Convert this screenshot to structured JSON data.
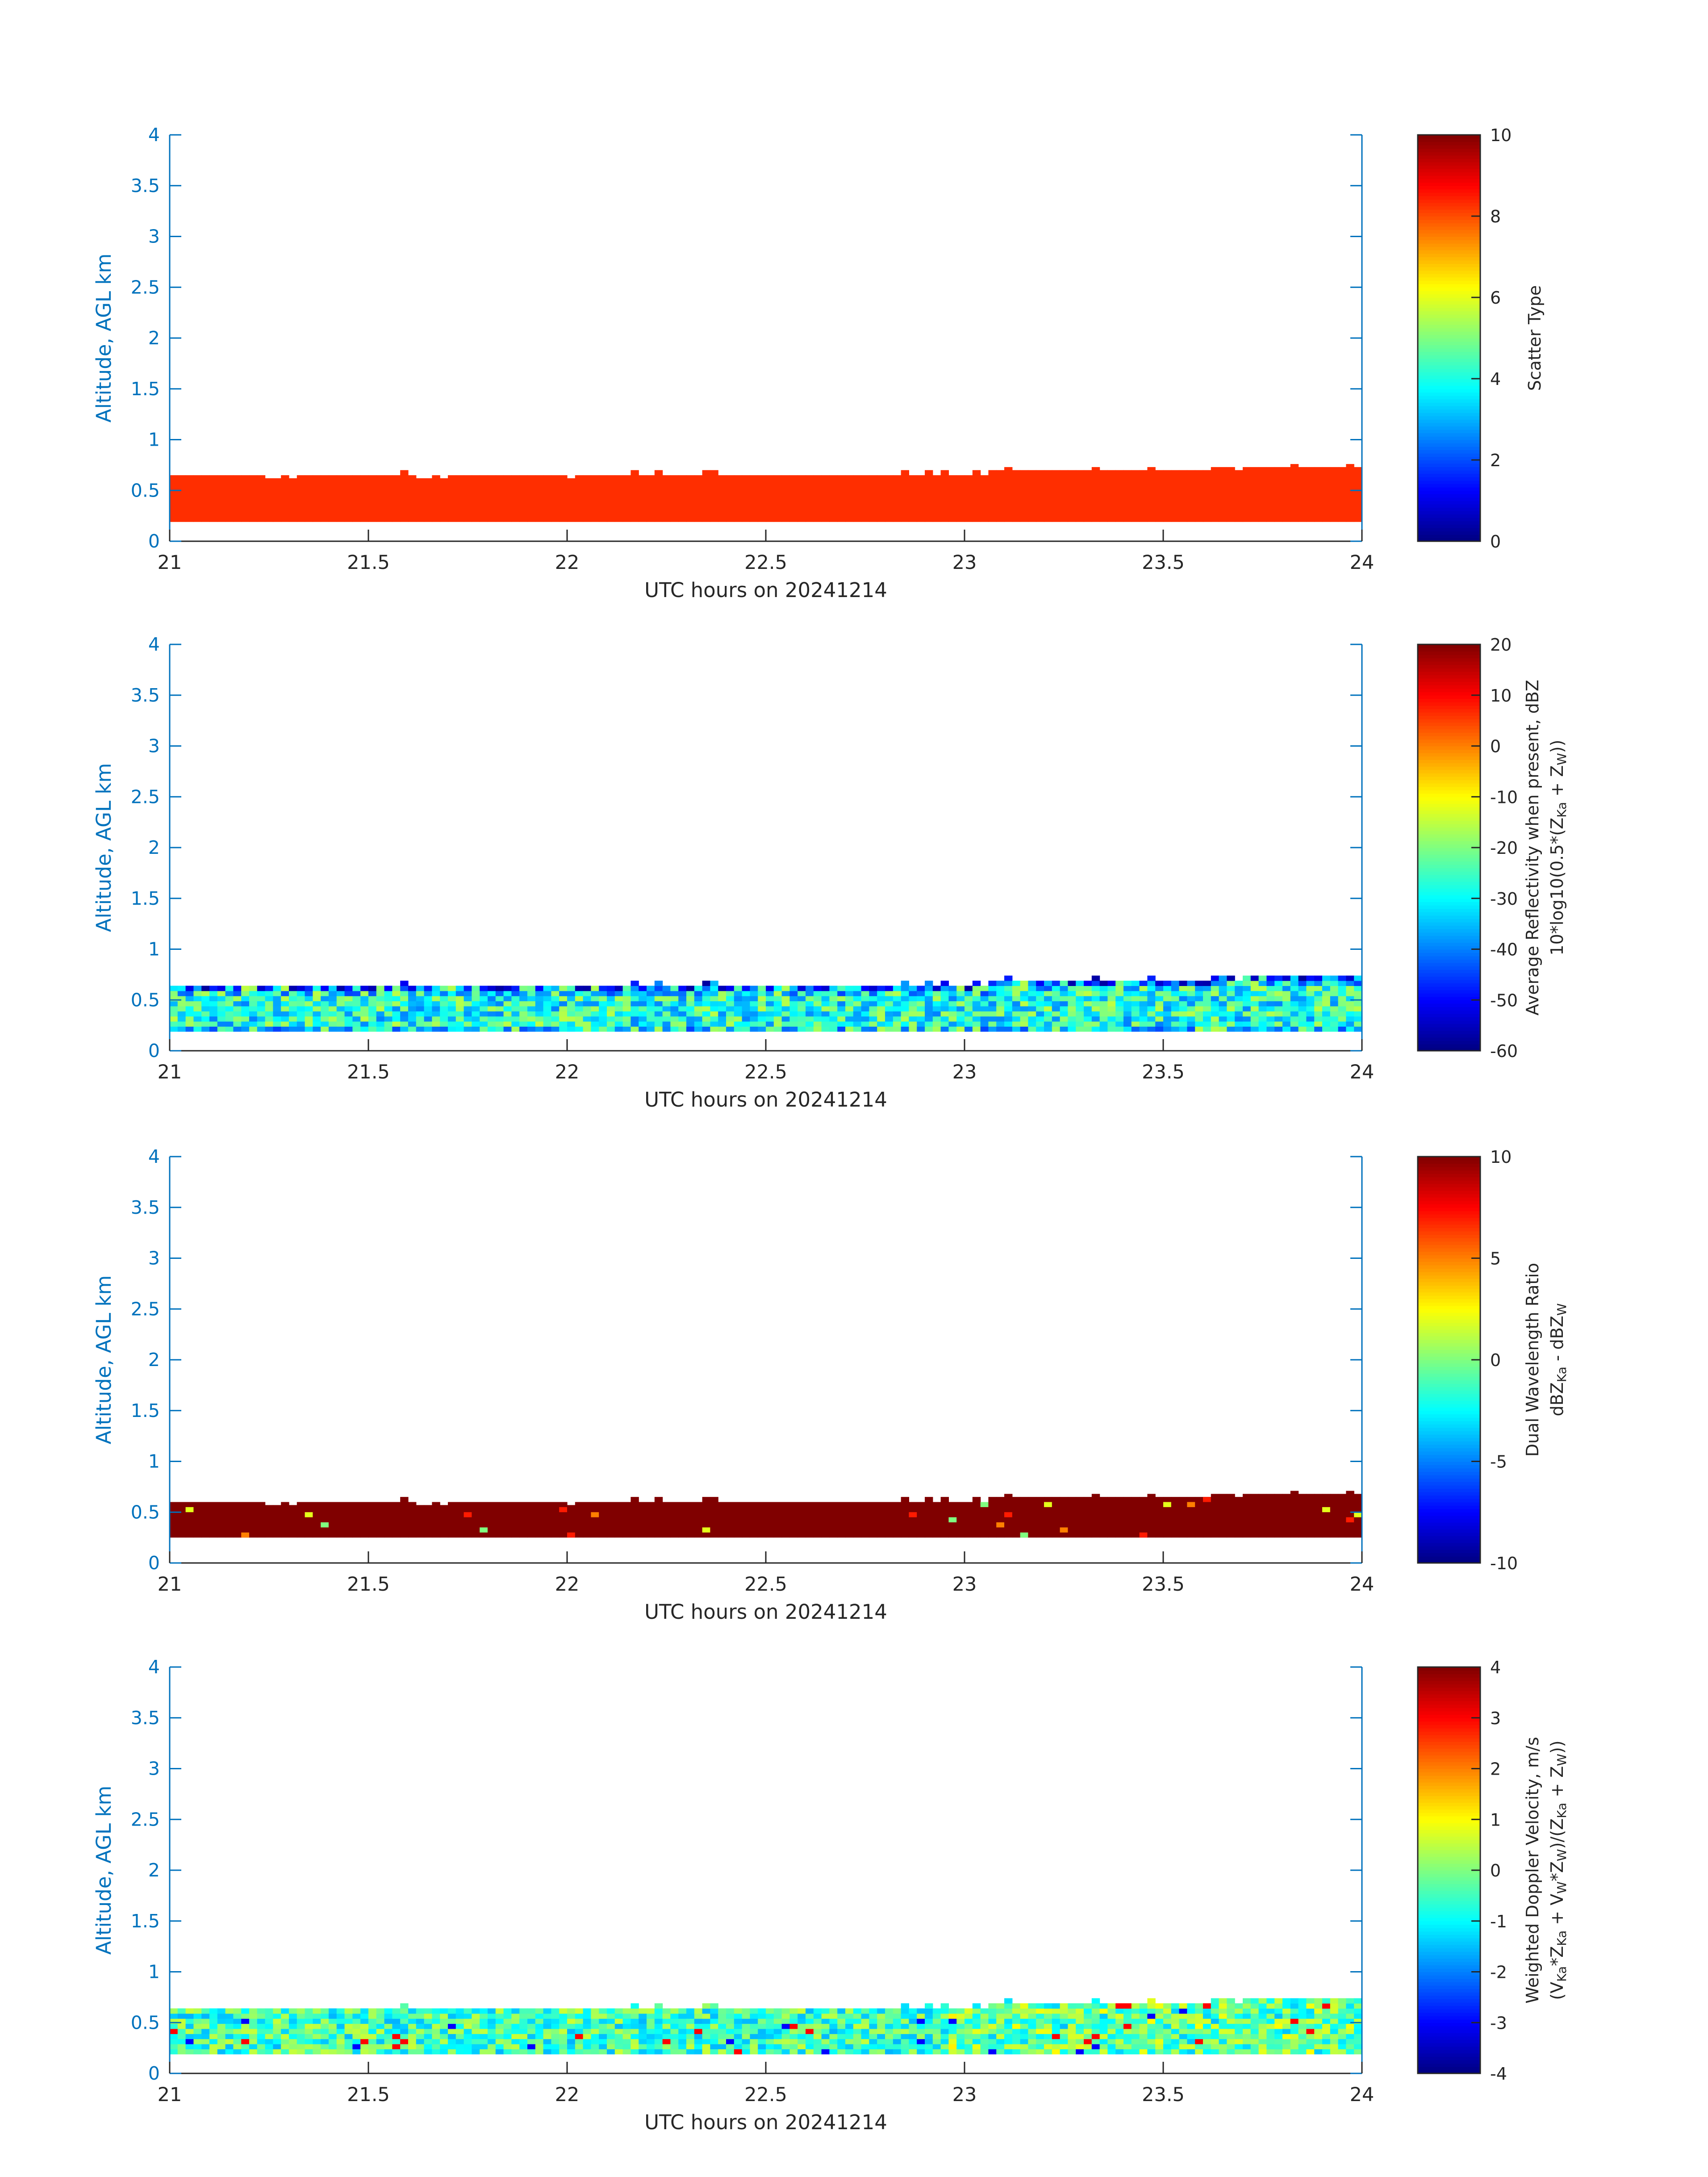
{
  "figure": {
    "colors": {
      "axis": "#0072BD",
      "text": "#262626",
      "cbar_frame": "#262626"
    }
  },
  "chart_data": [
    {
      "type": "heatmap",
      "panel_id": "scatter-type",
      "xlabel": "UTC hours on 20241214",
      "ylabel": "Altitude, AGL km",
      "xlim": [
        21,
        24
      ],
      "ylim": [
        0,
        4
      ],
      "xticks": [
        "21",
        "21.5",
        "22",
        "22.5",
        "23",
        "23.5",
        "24"
      ],
      "yticks": [
        "0",
        "0.5",
        "1",
        "1.5",
        "2",
        "2.5",
        "3",
        "3.5",
        "4"
      ],
      "colorbar": {
        "label_lines": [
          "Scatter Type"
        ],
        "ticks": [
          "0",
          "2",
          "4",
          "6",
          "8",
          "10"
        ],
        "min": 0,
        "max": 10,
        "colormap": "jet"
      },
      "field": {
        "bins": 150,
        "base_km": 0.19,
        "top_km": [
          0.65,
          0.65,
          0.65,
          0.65,
          0.65,
          0.65,
          0.65,
          0.65,
          0.65,
          0.65,
          0.65,
          0.65,
          0.62,
          0.62,
          0.65,
          0.62,
          0.65,
          0.65,
          0.65,
          0.65,
          0.65,
          0.65,
          0.65,
          0.65,
          0.65,
          0.65,
          0.65,
          0.65,
          0.65,
          0.7,
          0.65,
          0.62,
          0.62,
          0.65,
          0.62,
          0.65,
          0.65,
          0.65,
          0.65,
          0.65,
          0.65,
          0.65,
          0.65,
          0.65,
          0.65,
          0.65,
          0.65,
          0.65,
          0.65,
          0.65,
          0.62,
          0.65,
          0.65,
          0.65,
          0.65,
          0.65,
          0.65,
          0.65,
          0.7,
          0.65,
          0.65,
          0.7,
          0.65,
          0.65,
          0.65,
          0.65,
          0.65,
          0.7,
          0.7,
          0.65,
          0.65,
          0.65,
          0.65,
          0.65,
          0.65,
          0.65,
          0.65,
          0.65,
          0.65,
          0.65,
          0.65,
          0.65,
          0.65,
          0.65,
          0.65,
          0.65,
          0.65,
          0.65,
          0.65,
          0.65,
          0.65,
          0.65,
          0.7,
          0.65,
          0.65,
          0.7,
          0.65,
          0.7,
          0.65,
          0.65,
          0.65,
          0.7,
          0.65,
          0.7,
          0.7,
          0.73,
          0.7,
          0.7,
          0.7,
          0.7,
          0.7,
          0.7,
          0.7,
          0.7,
          0.7,
          0.7,
          0.73,
          0.7,
          0.7,
          0.7,
          0.7,
          0.7,
          0.7,
          0.73,
          0.7,
          0.7,
          0.7,
          0.7,
          0.7,
          0.7,
          0.7,
          0.73,
          0.73,
          0.73,
          0.7,
          0.73,
          0.73,
          0.73,
          0.73,
          0.73,
          0.73,
          0.76,
          0.73,
          0.73,
          0.73,
          0.73,
          0.73,
          0.73,
          0.76,
          0.73,
          0.73,
          0.76,
          0.73,
          0.76
        ],
        "value": 8.3
      }
    },
    {
      "type": "heatmap",
      "panel_id": "reflectivity",
      "xlabel": "UTC hours on 20241214",
      "ylabel": "Altitude, AGL km",
      "xlim": [
        21,
        24
      ],
      "ylim": [
        0,
        4
      ],
      "xticks": [
        "21",
        "21.5",
        "22",
        "22.5",
        "23",
        "23.5",
        "24"
      ],
      "yticks": [
        "0",
        "0.5",
        "1",
        "1.5",
        "2",
        "2.5",
        "3",
        "3.5",
        "4"
      ],
      "colorbar": {
        "label_lines": [
          "Average Reflectivity when present, dBZ",
          "10*log10(0.5*(Z",
          "Ka",
          " + Z",
          "W",
          "))"
        ],
        "ticks": [
          "-60",
          "-50",
          "-40",
          "-30",
          "-20",
          "-10",
          "0",
          "10",
          "20"
        ],
        "min": -60,
        "max": 20,
        "colormap": "jet"
      },
      "field": {
        "bins": 150,
        "base_km": 0.19,
        "top_km": [
          0.65,
          0.65,
          0.65,
          0.65,
          0.65,
          0.65,
          0.65,
          0.65,
          0.65,
          0.65,
          0.65,
          0.65,
          0.62,
          0.62,
          0.65,
          0.62,
          0.65,
          0.65,
          0.65,
          0.65,
          0.65,
          0.65,
          0.65,
          0.65,
          0.65,
          0.65,
          0.65,
          0.65,
          0.65,
          0.7,
          0.65,
          0.62,
          0.62,
          0.65,
          0.62,
          0.65,
          0.65,
          0.65,
          0.65,
          0.65,
          0.65,
          0.65,
          0.65,
          0.65,
          0.65,
          0.65,
          0.65,
          0.65,
          0.65,
          0.65,
          0.62,
          0.65,
          0.65,
          0.65,
          0.65,
          0.65,
          0.65,
          0.65,
          0.7,
          0.65,
          0.65,
          0.7,
          0.65,
          0.65,
          0.65,
          0.65,
          0.65,
          0.7,
          0.7,
          0.65,
          0.65,
          0.65,
          0.65,
          0.65,
          0.65,
          0.65,
          0.65,
          0.65,
          0.65,
          0.65,
          0.65,
          0.65,
          0.65,
          0.65,
          0.65,
          0.65,
          0.65,
          0.65,
          0.65,
          0.65,
          0.65,
          0.65,
          0.7,
          0.65,
          0.65,
          0.7,
          0.65,
          0.7,
          0.65,
          0.65,
          0.65,
          0.7,
          0.65,
          0.7,
          0.7,
          0.73,
          0.7,
          0.7,
          0.7,
          0.7,
          0.7,
          0.7,
          0.7,
          0.7,
          0.7,
          0.7,
          0.73,
          0.7,
          0.7,
          0.7,
          0.7,
          0.7,
          0.7,
          0.73,
          0.7,
          0.7,
          0.7,
          0.7,
          0.7,
          0.7,
          0.7,
          0.73,
          0.73,
          0.73,
          0.7,
          0.73,
          0.73,
          0.73,
          0.73,
          0.73,
          0.73,
          0.76,
          0.73,
          0.73,
          0.73,
          0.73,
          0.73,
          0.73,
          0.76,
          0.73,
          0.73,
          0.76,
          0.73,
          0.76
        ],
        "value_range": [
          -40,
          -15
        ],
        "top_value": -52
      }
    },
    {
      "type": "heatmap",
      "panel_id": "dwr",
      "xlabel": "UTC hours on 20241214",
      "ylabel": "Altitude, AGL km",
      "xlim": [
        21,
        24
      ],
      "ylim": [
        0,
        4
      ],
      "xticks": [
        "21",
        "21.5",
        "22",
        "22.5",
        "23",
        "23.5",
        "24"
      ],
      "yticks": [
        "0",
        "0.5",
        "1",
        "1.5",
        "2",
        "2.5",
        "3",
        "3.5",
        "4"
      ],
      "colorbar": {
        "label_lines": [
          "Dual Wavelength Ratio",
          "dBZ",
          "Ka",
          " - dBZ",
          "W"
        ],
        "ticks": [
          "-10",
          "-5",
          "0",
          "5",
          "10"
        ],
        "min": -10,
        "max": 10,
        "colormap": "jet"
      },
      "field": {
        "bins": 150,
        "base_km": 0.25,
        "top_km": [
          0.6,
          0.6,
          0.6,
          0.6,
          0.6,
          0.6,
          0.6,
          0.6,
          0.6,
          0.6,
          0.6,
          0.6,
          0.57,
          0.57,
          0.6,
          0.57,
          0.6,
          0.6,
          0.6,
          0.6,
          0.6,
          0.6,
          0.6,
          0.6,
          0.6,
          0.6,
          0.6,
          0.6,
          0.6,
          0.65,
          0.6,
          0.57,
          0.57,
          0.6,
          0.57,
          0.6,
          0.6,
          0.6,
          0.6,
          0.6,
          0.6,
          0.6,
          0.6,
          0.6,
          0.6,
          0.6,
          0.6,
          0.6,
          0.6,
          0.6,
          0.57,
          0.6,
          0.6,
          0.6,
          0.6,
          0.6,
          0.6,
          0.6,
          0.65,
          0.6,
          0.6,
          0.65,
          0.6,
          0.6,
          0.6,
          0.6,
          0.6,
          0.65,
          0.65,
          0.6,
          0.6,
          0.6,
          0.6,
          0.6,
          0.6,
          0.6,
          0.6,
          0.6,
          0.6,
          0.6,
          0.6,
          0.6,
          0.6,
          0.6,
          0.6,
          0.6,
          0.6,
          0.6,
          0.6,
          0.6,
          0.6,
          0.6,
          0.65,
          0.6,
          0.6,
          0.65,
          0.6,
          0.65,
          0.6,
          0.6,
          0.6,
          0.65,
          0.6,
          0.65,
          0.65,
          0.68,
          0.65,
          0.65,
          0.65,
          0.65,
          0.65,
          0.65,
          0.65,
          0.65,
          0.65,
          0.65,
          0.68,
          0.65,
          0.65,
          0.65,
          0.65,
          0.65,
          0.65,
          0.68,
          0.65,
          0.65,
          0.65,
          0.65,
          0.65,
          0.65,
          0.65,
          0.68,
          0.68,
          0.68,
          0.65,
          0.68,
          0.68,
          0.68,
          0.68,
          0.68,
          0.68,
          0.71,
          0.68,
          0.68,
          0.68,
          0.68,
          0.68,
          0.68,
          0.71,
          0.68,
          0.68,
          0.71,
          0.68,
          0.71
        ],
        "value": 10
      }
    },
    {
      "type": "heatmap",
      "panel_id": "doppler",
      "xlabel": "UTC hours on 20241214",
      "ylabel": "Altitude, AGL km",
      "xlim": [
        21,
        24
      ],
      "ylim": [
        0,
        4
      ],
      "xticks": [
        "21",
        "21.5",
        "22",
        "22.5",
        "23",
        "23.5",
        "24"
      ],
      "yticks": [
        "0",
        "0.5",
        "1",
        "1.5",
        "2",
        "2.5",
        "3",
        "3.5",
        "4"
      ],
      "colorbar": {
        "label_lines": [
          "Weighted Doppler Velocity, m/s",
          "(V",
          "Ka",
          "*Z",
          "Ka",
          " + V",
          "W",
          "*Z",
          "W",
          ")/(Z",
          "Ka",
          " + Z",
          "W",
          "))"
        ],
        "ticks": [
          "-4",
          "-3",
          "-2",
          "-1",
          "0",
          "1",
          "2",
          "3",
          "4"
        ],
        "min": -4,
        "max": 4,
        "colormap": "jet"
      },
      "field": {
        "bins": 150,
        "base_km": 0.19,
        "top_km": [
          0.65,
          0.65,
          0.65,
          0.65,
          0.65,
          0.65,
          0.65,
          0.65,
          0.65,
          0.65,
          0.65,
          0.65,
          0.62,
          0.62,
          0.65,
          0.62,
          0.65,
          0.65,
          0.65,
          0.65,
          0.65,
          0.65,
          0.65,
          0.65,
          0.65,
          0.65,
          0.65,
          0.65,
          0.65,
          0.7,
          0.65,
          0.62,
          0.62,
          0.65,
          0.62,
          0.65,
          0.65,
          0.65,
          0.65,
          0.65,
          0.65,
          0.65,
          0.65,
          0.65,
          0.65,
          0.65,
          0.65,
          0.65,
          0.65,
          0.65,
          0.62,
          0.65,
          0.65,
          0.65,
          0.65,
          0.65,
          0.65,
          0.65,
          0.7,
          0.65,
          0.65,
          0.7,
          0.65,
          0.65,
          0.65,
          0.65,
          0.65,
          0.7,
          0.7,
          0.65,
          0.65,
          0.65,
          0.65,
          0.65,
          0.65,
          0.65,
          0.65,
          0.65,
          0.65,
          0.65,
          0.65,
          0.65,
          0.65,
          0.65,
          0.65,
          0.65,
          0.65,
          0.65,
          0.65,
          0.65,
          0.65,
          0.65,
          0.7,
          0.65,
          0.65,
          0.7,
          0.65,
          0.7,
          0.65,
          0.65,
          0.65,
          0.7,
          0.65,
          0.7,
          0.7,
          0.73,
          0.7,
          0.7,
          0.7,
          0.7,
          0.7,
          0.7,
          0.7,
          0.7,
          0.7,
          0.7,
          0.73,
          0.7,
          0.7,
          0.7,
          0.7,
          0.7,
          0.7,
          0.73,
          0.7,
          0.7,
          0.7,
          0.7,
          0.7,
          0.7,
          0.7,
          0.73,
          0.73,
          0.73,
          0.7,
          0.73,
          0.73,
          0.73,
          0.73,
          0.73,
          0.73,
          0.76,
          0.73,
          0.73,
          0.73,
          0.73,
          0.73,
          0.73,
          0.76,
          0.73,
          0.73,
          0.76,
          0.73,
          0.76
        ],
        "value_range": [
          -1.6,
          0.6
        ]
      }
    }
  ]
}
